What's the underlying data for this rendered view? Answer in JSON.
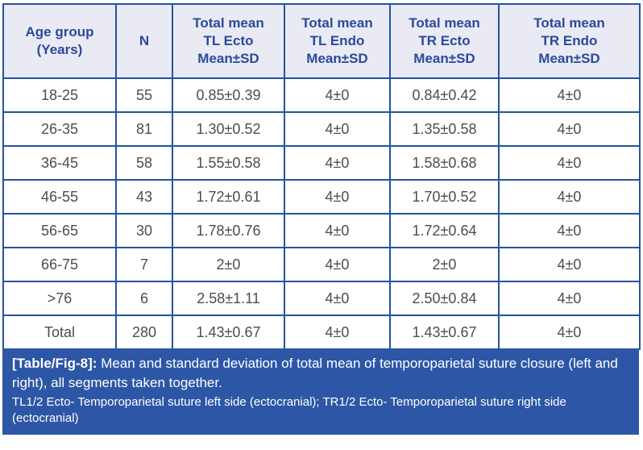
{
  "table": {
    "headers": [
      {
        "lines": [
          "Age group",
          "(Years)"
        ]
      },
      {
        "lines": [
          "N"
        ]
      },
      {
        "lines": [
          "Total mean",
          "TL Ecto",
          "Mean±SD"
        ]
      },
      {
        "lines": [
          "Total mean",
          "TL Endo",
          "Mean±SD"
        ]
      },
      {
        "lines": [
          "Total mean",
          "TR Ecto",
          "Mean±SD"
        ]
      },
      {
        "lines": [
          "Total mean",
          "TR Endo",
          "Mean±SD"
        ]
      }
    ],
    "rows": [
      [
        "18-25",
        "55",
        "0.85±0.39",
        "4±0",
        "0.84±0.42",
        "4±0"
      ],
      [
        "26-35",
        "81",
        "1.30±0.52",
        "4±0",
        "1.35±0.58",
        "4±0"
      ],
      [
        "36-45",
        "58",
        "1.55±0.58",
        "4±0",
        "1.58±0.68",
        "4±0"
      ],
      [
        "46-55",
        "43",
        "1.72±0.61",
        "4±0",
        "1.70±0.52",
        "4±0"
      ],
      [
        "56-65",
        "30",
        "1.78±0.76",
        "4±0",
        "1.72±0.64",
        "4±0"
      ],
      [
        "66-75",
        "7",
        "2±0",
        "4±0",
        "2±0",
        "4±0"
      ],
      [
        ">76",
        "6",
        "2.58±1.11",
        "4±0",
        "2.50±0.84",
        "4±0"
      ],
      [
        "Total",
        "280",
        "1.43±0.67",
        "4±0",
        "1.43±0.67",
        "4±0"
      ]
    ]
  },
  "caption": {
    "label": "[Table/Fig-8]:",
    "text": "Mean and standard deviation of total mean of temporoparietal suture closure (left and right), all segments taken together.",
    "footnote": "TL1/2 Ecto- Temporoparietal suture left side (ectocranial); TR1/2 Ecto- Temporoparietal suture right side (ectocranial)"
  },
  "colors": {
    "border": "#24549e",
    "header_bg": "#e9eaf4",
    "header_text": "#2b4a9b",
    "body_text": "#4d4d4f",
    "caption_bg": "#2d57a6",
    "caption_text": "#ffffff"
  }
}
